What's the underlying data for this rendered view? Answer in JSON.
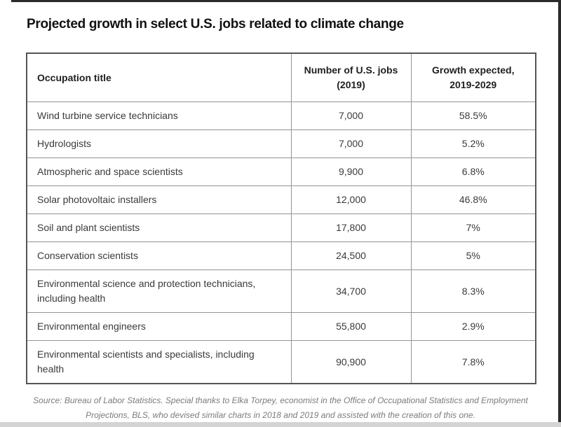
{
  "window": {
    "edge_colors": {
      "top": "#2a2a2a",
      "right": "#2a2a2a",
      "bottom_band": "#d4d4d4"
    }
  },
  "chart_data": {
    "type": "table",
    "title": "Projected growth in select U.S. jobs related to climate change",
    "columns": [
      "Occupation title",
      "Number of U.S. jobs (2019)",
      "Growth expected, 2019-2029"
    ],
    "rows": [
      {
        "occupation": "Wind turbine service technicians",
        "jobs_2019": "7,000",
        "growth_2019_2029": "58.5%"
      },
      {
        "occupation": "Hydrologists",
        "jobs_2019": "7,000",
        "growth_2019_2029": "5.2%"
      },
      {
        "occupation": "Atmospheric and space scientists",
        "jobs_2019": "9,900",
        "growth_2019_2029": "6.8%"
      },
      {
        "occupation": "Solar photovoltaic installers",
        "jobs_2019": "12,000",
        "growth_2019_2029": "46.8%"
      },
      {
        "occupation": "Soil and plant scientists",
        "jobs_2019": "17,800",
        "growth_2019_2029": "7%"
      },
      {
        "occupation": "Conservation scientists",
        "jobs_2019": "24,500",
        "growth_2019_2029": "5%"
      },
      {
        "occupation": "Environmental science and protection technicians, including health",
        "jobs_2019": "34,700",
        "growth_2019_2029": "8.3%"
      },
      {
        "occupation": "Environmental engineers",
        "jobs_2019": "55,800",
        "growth_2019_2029": "2.9%"
      },
      {
        "occupation": "Environmental scientists and specialists, including health",
        "jobs_2019": "90,900",
        "growth_2019_2029": "7.8%"
      }
    ],
    "growth_values_numeric": [
      58.5,
      5.2,
      6.8,
      46.8,
      7,
      5,
      8.3,
      2.9,
      7.8
    ],
    "jobs_values_numeric": [
      7000,
      7000,
      9900,
      12000,
      17800,
      24500,
      34700,
      55800,
      90900
    ],
    "source": "Source: Bureau of Labor Statistics. Special thanks to Elka Torpey, economist in the Office of Occupational Statistics and Employment Projections, BLS, who devised similar charts in 2018 and 2019 and assisted with the creation of this one.",
    "colors": {
      "outer_border": "#555555",
      "inner_border": "#949494",
      "title_text": "#111111",
      "cell_text": "#3a3a3a",
      "source_text": "#7b7b7b"
    }
  }
}
